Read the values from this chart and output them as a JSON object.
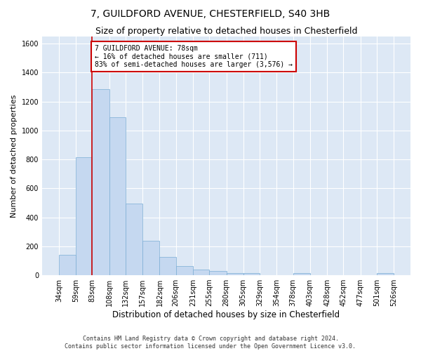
{
  "title1": "7, GUILDFORD AVENUE, CHESTERFIELD, S40 3HB",
  "title2": "Size of property relative to detached houses in Chesterfield",
  "xlabel": "Distribution of detached houses by size in Chesterfield",
  "ylabel": "Number of detached properties",
  "footer1": "Contains HM Land Registry data © Crown copyright and database right 2024.",
  "footer2": "Contains public sector information licensed under the Open Government Licence v3.0.",
  "annotation_title": "7 GUILDFORD AVENUE: 78sqm",
  "annotation_line1": "← 16% of detached houses are smaller (711)",
  "annotation_line2": "83% of semi-detached houses are larger (3,576) →",
  "property_size": 78,
  "bar_edges": [
    34,
    59,
    83,
    108,
    132,
    157,
    182,
    206,
    231,
    255,
    280,
    305,
    329,
    354,
    378,
    403,
    428,
    452,
    477,
    501,
    526
  ],
  "bar_values": [
    140,
    815,
    1285,
    1090,
    495,
    238,
    128,
    65,
    40,
    28,
    15,
    15,
    0,
    0,
    15,
    0,
    0,
    0,
    0,
    15
  ],
  "bar_color": "#c5d8f0",
  "bar_edge_color": "#7aadd4",
  "vline_color": "#cc0000",
  "vline_x": 83,
  "ylim": [
    0,
    1650
  ],
  "yticks": [
    0,
    200,
    400,
    600,
    800,
    1000,
    1200,
    1400,
    1600
  ],
  "bg_color": "#dde8f5",
  "grid_color": "#ffffff",
  "annotation_box_color": "#cc0000",
  "title_fontsize": 10,
  "subtitle_fontsize": 9,
  "axis_label_fontsize": 8,
  "tick_fontsize": 7,
  "footer_fontsize": 6
}
